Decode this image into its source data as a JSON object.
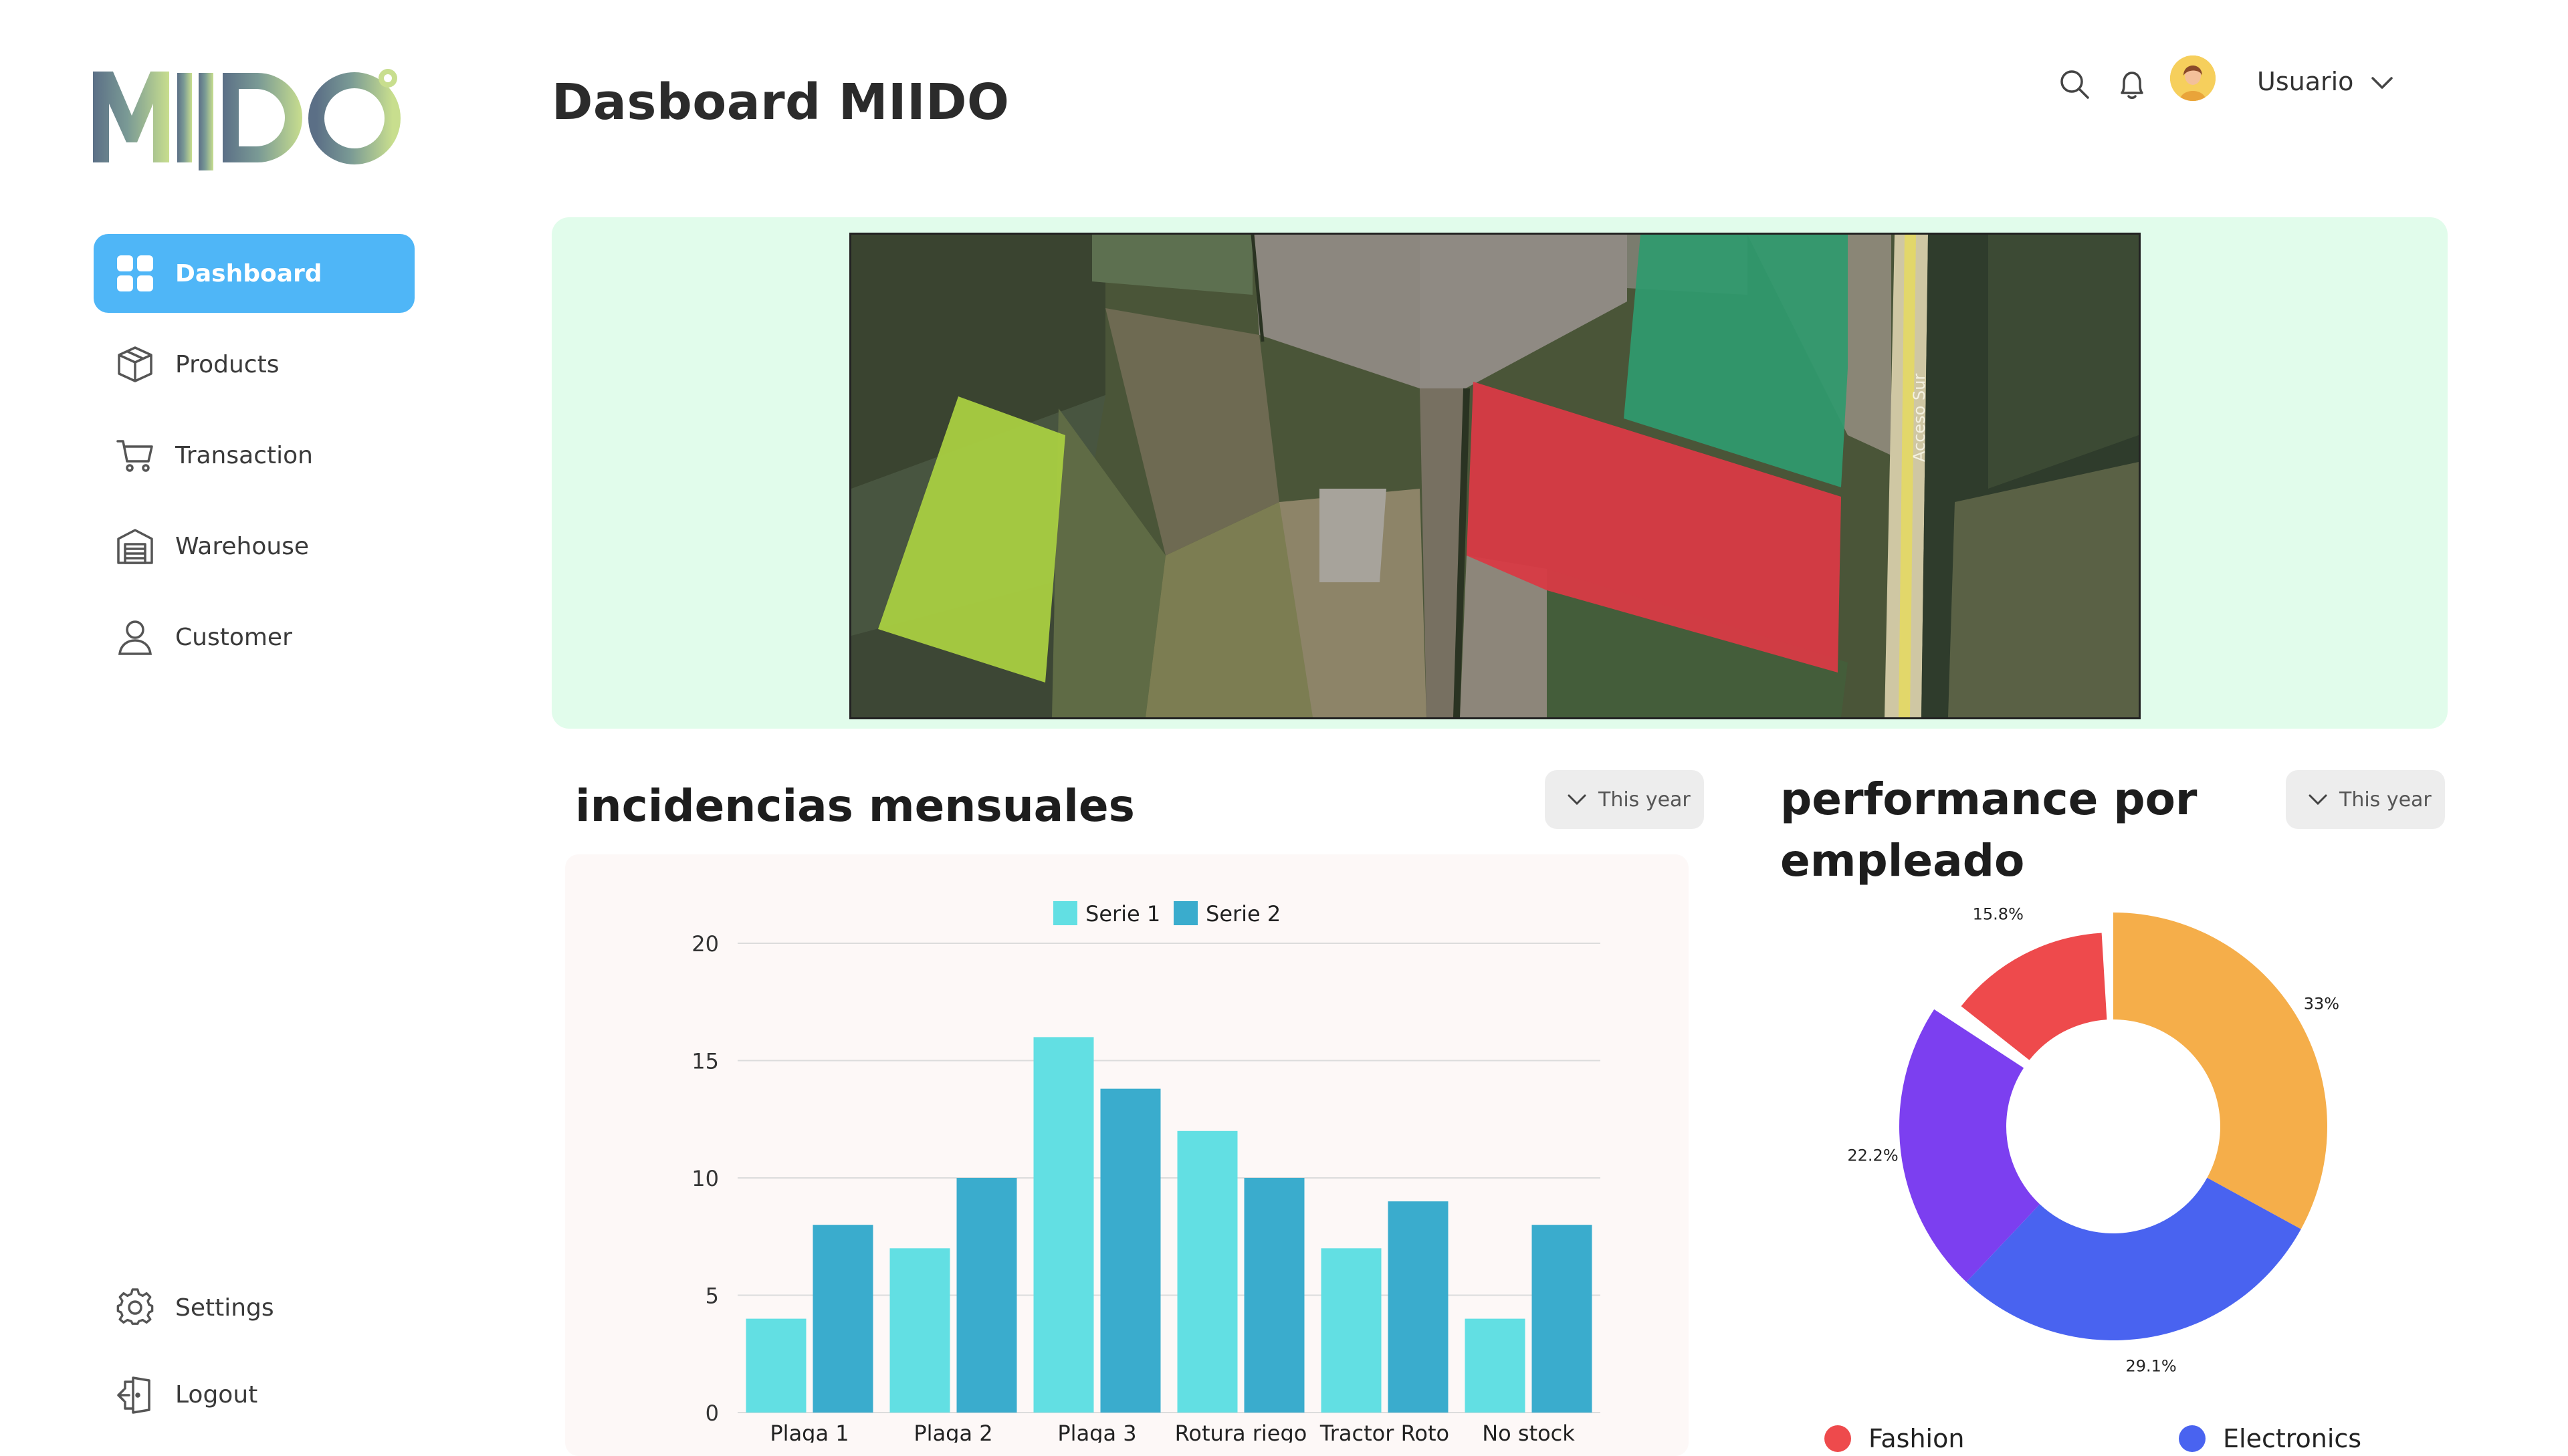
{
  "app": {
    "logo_text": "MIIDO",
    "page_title": "Dasboard MIIDO"
  },
  "sidebar": {
    "items": [
      {
        "label": "Dashboard",
        "icon": "grid-icon",
        "active": true
      },
      {
        "label": "Products",
        "icon": "box-icon"
      },
      {
        "label": "Transaction",
        "icon": "cart-icon"
      },
      {
        "label": "Warehouse",
        "icon": "warehouse-icon"
      },
      {
        "label": "Customer",
        "icon": "user-icon"
      }
    ],
    "bottom": [
      {
        "label": "Settings",
        "icon": "gear-icon"
      },
      {
        "label": "Logout",
        "icon": "logout-icon"
      }
    ]
  },
  "header": {
    "icons": [
      "search-icon",
      "bell-icon"
    ],
    "user_name": "Usuario"
  },
  "map": {
    "road_label": "Acceso Sur",
    "highlight_colors": [
      "#a9cf41",
      "#d83a45",
      "#2f9a6e"
    ]
  },
  "bar_section": {
    "title": "incidencias mensuales",
    "filter_label": "This year"
  },
  "pie_section": {
    "title_line1": "performance por",
    "title_line2": "empleado",
    "filter_label": "This year"
  },
  "colors": {
    "accent": "#4fb6f7",
    "map_panel_bg": "#e1fceb",
    "serie1": "#62dfe3",
    "serie2": "#3aaccd"
  },
  "chart_data": [
    {
      "type": "bar",
      "categories": [
        "Plaga 1",
        "Plaga 2",
        "Plaga 3",
        "Rotura riego",
        "Tractor Roto",
        "No stock"
      ],
      "series": [
        {
          "name": "Serie 1",
          "values": [
            4,
            7,
            16,
            12,
            7,
            4
          ],
          "color": "#62dfe3"
        },
        {
          "name": "Serie 2",
          "values": [
            8,
            10,
            13.8,
            10,
            9,
            8
          ],
          "color": "#3aaccd"
        }
      ],
      "yticks": [
        "0",
        "5",
        "10",
        "15",
        "20"
      ],
      "ylim": [
        0,
        20
      ],
      "grid": true,
      "legend": "top"
    },
    {
      "type": "pie",
      "donut": true,
      "slices": [
        {
          "name": "",
          "value": 33,
          "label": "33%",
          "color": "#f5ae4a"
        },
        {
          "name": "",
          "value": 29.1,
          "label": "29.1%",
          "color": "#4963f0"
        },
        {
          "name": "",
          "value": 22.2,
          "label": "22.2%",
          "color": "#7c3ff0"
        },
        {
          "name": "",
          "value": 15.8,
          "label": "15.8%",
          "color": "#ee4a4c"
        }
      ],
      "legend_items": [
        {
          "name": "Fashion",
          "color": "#ee4a4c"
        },
        {
          "name": "Electronics",
          "color": "#4963f0"
        }
      ],
      "legend": "bottom"
    }
  ]
}
